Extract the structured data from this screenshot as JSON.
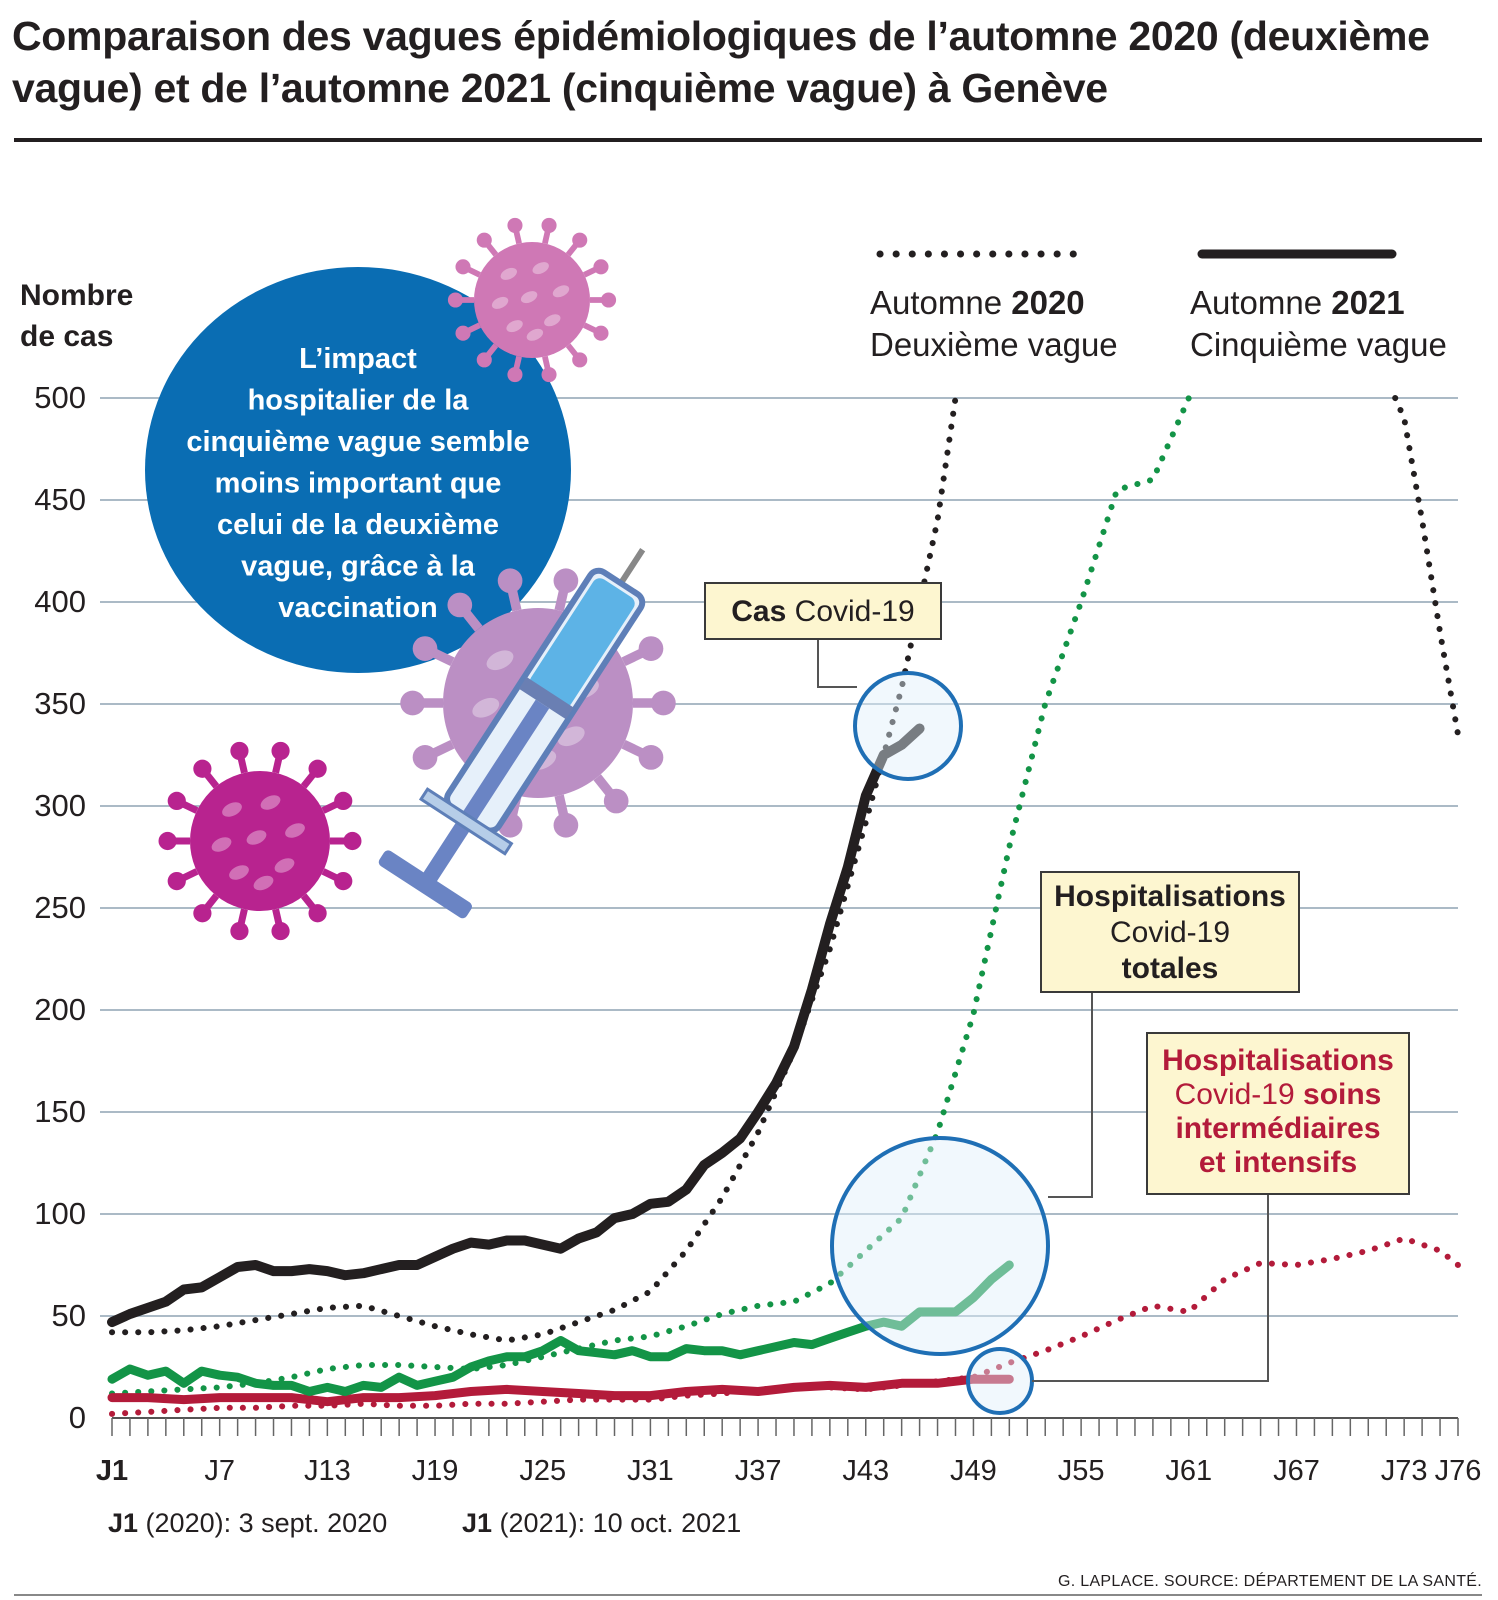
{
  "title": "Comparaison des vagues épidémiologiques de l’automne 2020 (deuxième vague) et de l’automne 2021 (cinquième vague) à Genève",
  "bubble_lines": [
    "L’impact",
    "hospitalier de la",
    "cinquième vague semble",
    "moins important que",
    "celui de la deuxième",
    "vague, grâce à la",
    "vaccination"
  ],
  "icons": [
    "virus-icon",
    "syringe-icon"
  ],
  "legend": {
    "y_label_line1": "Nombre",
    "y_label_line2": "de cas",
    "item_2020": {
      "prefix": "Automne ",
      "year": "2020",
      "subtitle": "Deuxième vague",
      "style": "dotted"
    },
    "item_2021": {
      "prefix": "Automne ",
      "year": "2021",
      "subtitle": "Cinquième vague",
      "style": "solid"
    }
  },
  "callouts": {
    "cases": {
      "bold": "Cas",
      "text": " Covid-19"
    },
    "hosp_total": {
      "line1": "Hospitalisations",
      "line2": "Covid-19",
      "line3": "totales"
    },
    "hosp_icu": {
      "line1": "Hospitalisations",
      "line2a": "Covid-19",
      "line2b": " soins",
      "line3": "intermédiaires",
      "line4": "et intensifs"
    }
  },
  "notes": {
    "j1_2020_bold": "J1",
    "j1_2020_text": " (2020): 3 sept. 2020",
    "j1_2021_bold": "J1",
    "j1_2021_text": " (2021): 10 oct. 2021"
  },
  "credit": "G. LAPLACE. SOURCE: DÉPARTEMENT DE LA SANTÉ.",
  "colors": {
    "cases": "#231f20",
    "hosp_total": "#139447",
    "hosp_icu": "#b31b3a",
    "bubble": "#0a6db3",
    "circle": "#1f6fb5",
    "callout_bg": "#fdf6d0",
    "grid": "#8fa3b3",
    "virus_pink": "#cf78b5",
    "virus_lilac": "#bb8fc4",
    "virus_magenta": "#b8238f"
  },
  "chart_data": {
    "type": "line",
    "title": "Comparaison des vagues épidémiologiques de l’automne 2020 (deuxième vague) et de l’automne 2021 (cinquième vague) à Genève",
    "xlabel": "",
    "ylabel": "Nombre de cas",
    "ylim": [
      0,
      500
    ],
    "xlim": [
      1,
      76
    ],
    "x_ticks": [
      {
        "day": 1,
        "label": "J1",
        "bold": true
      },
      {
        "day": 7,
        "label": "J7"
      },
      {
        "day": 13,
        "label": "J13"
      },
      {
        "day": 19,
        "label": "J19"
      },
      {
        "day": 25,
        "label": "J25"
      },
      {
        "day": 31,
        "label": "J31"
      },
      {
        "day": 37,
        "label": "J37"
      },
      {
        "day": 43,
        "label": "J43"
      },
      {
        "day": 49,
        "label": "J49"
      },
      {
        "day": 55,
        "label": "J55"
      },
      {
        "day": 61,
        "label": "J61"
      },
      {
        "day": 67,
        "label": "J67"
      },
      {
        "day": 73,
        "label": "J73"
      },
      {
        "day": 76,
        "label": "J76"
      }
    ],
    "y_ticks": [
      0,
      50,
      100,
      150,
      200,
      250,
      300,
      350,
      400,
      450,
      500
    ],
    "series": [
      {
        "name": "Cas Covid-19 — automne 2020",
        "wave": "2020",
        "metric": "cases",
        "style": "dotted",
        "x": [
          1,
          3,
          5,
          7,
          9,
          11,
          13,
          15,
          17,
          19,
          21,
          23,
          25,
          27,
          29,
          31,
          33,
          35,
          37,
          39,
          41,
          43,
          45,
          47,
          48
        ],
        "y": [
          42,
          42,
          43,
          45,
          48,
          51,
          54,
          55,
          50,
          45,
          41,
          38,
          41,
          47,
          53,
          62,
          82,
          108,
          140,
          180,
          230,
          292,
          358,
          440,
          500
        ],
        "y2": [
          {
            "x": 72.5,
            "y": 500
          },
          {
            "x": 73,
            "y": 490
          },
          {
            "x": 74,
            "y": 440
          },
          {
            "x": 75,
            "y": 385
          },
          {
            "x": 76,
            "y": 335
          }
        ]
      },
      {
        "name": "Cas Covid-19 — automne 2021",
        "wave": "2021",
        "metric": "cases",
        "style": "solid",
        "x": [
          1,
          2,
          3,
          4,
          5,
          6,
          7,
          8,
          9,
          10,
          11,
          12,
          13,
          14,
          15,
          16,
          17,
          18,
          19,
          20,
          21,
          22,
          23,
          24,
          25,
          26,
          27,
          28,
          29,
          30,
          31,
          32,
          33,
          34,
          35,
          36,
          37,
          38,
          39,
          40,
          41,
          42,
          43,
          44,
          45,
          46
        ],
        "y": [
          47,
          51,
          54,
          57,
          63,
          64,
          69,
          74,
          75,
          72,
          72,
          73,
          72,
          70,
          71,
          73,
          75,
          75,
          79,
          83,
          86,
          85,
          87,
          87,
          85,
          83,
          88,
          91,
          98,
          100,
          105,
          106,
          112,
          124,
          130,
          137,
          150,
          164,
          182,
          210,
          242,
          270,
          305,
          325,
          330,
          338
        ]
      },
      {
        "name": "Hospitalisations Covid-19 totales — automne 2020",
        "wave": "2020",
        "metric": "hosp_total",
        "style": "dotted",
        "x": [
          1,
          3,
          5,
          7,
          9,
          11,
          13,
          15,
          17,
          19,
          21,
          23,
          25,
          27,
          29,
          31,
          33,
          35,
          37,
          39,
          41,
          43,
          45,
          47,
          49,
          51,
          53,
          55,
          57,
          59,
          61
        ],
        "y": [
          12,
          13,
          14,
          15,
          17,
          20,
          24,
          26,
          26,
          25,
          24,
          26,
          30,
          34,
          38,
          40,
          45,
          51,
          55,
          57,
          66,
          82,
          98,
          140,
          198,
          280,
          350,
          400,
          455,
          460,
          500
        ]
      },
      {
        "name": "Hospitalisations Covid-19 totales — automne 2021",
        "wave": "2021",
        "metric": "hosp_total",
        "style": "solid",
        "x": [
          1,
          2,
          3,
          4,
          5,
          6,
          7,
          8,
          9,
          10,
          11,
          12,
          13,
          14,
          15,
          16,
          17,
          18,
          19,
          20,
          21,
          22,
          23,
          24,
          25,
          26,
          27,
          28,
          29,
          30,
          31,
          32,
          33,
          34,
          35,
          36,
          37,
          38,
          39,
          40,
          41,
          42,
          43,
          44,
          45,
          46,
          47,
          48,
          49,
          50,
          51
        ],
        "y": [
          19,
          24,
          21,
          23,
          17,
          23,
          21,
          20,
          17,
          16,
          16,
          13,
          15,
          13,
          16,
          15,
          20,
          16,
          18,
          20,
          25,
          28,
          30,
          30,
          33,
          38,
          33,
          32,
          31,
          33,
          30,
          30,
          34,
          33,
          33,
          31,
          33,
          35,
          37,
          36,
          39,
          42,
          45,
          47,
          45,
          52,
          52,
          52,
          59,
          68,
          75
        ]
      },
      {
        "name": "Hospitalisations Covid-19 soins intermédiaires et intensifs — automne 2020",
        "wave": "2020",
        "metric": "hosp_icu",
        "style": "dotted",
        "x": [
          1,
          3,
          5,
          7,
          9,
          11,
          13,
          15,
          17,
          19,
          21,
          23,
          25,
          27,
          29,
          31,
          33,
          35,
          37,
          39,
          41,
          43,
          45,
          47,
          49,
          51,
          53,
          55,
          57,
          59,
          61,
          63,
          65,
          67,
          69,
          71,
          73,
          75,
          76
        ],
        "y": [
          2,
          3,
          4,
          5,
          5,
          6,
          6,
          7,
          6,
          6,
          7,
          7,
          8,
          9,
          9,
          9,
          11,
          12,
          14,
          15,
          15,
          14,
          16,
          18,
          20,
          27,
          33,
          40,
          48,
          55,
          52,
          68,
          76,
          75,
          78,
          82,
          88,
          82,
          75
        ]
      },
      {
        "name": "Hospitalisations Covid-19 soins intermédiaires et intensifs — automne 2021",
        "wave": "2021",
        "metric": "hosp_icu",
        "style": "solid",
        "x": [
          1,
          3,
          5,
          7,
          9,
          11,
          13,
          15,
          17,
          19,
          21,
          23,
          25,
          27,
          29,
          31,
          33,
          35,
          37,
          39,
          41,
          43,
          45,
          47,
          49,
          51
        ],
        "y": [
          10,
          10,
          9,
          10,
          10,
          10,
          8,
          10,
          10,
          11,
          13,
          14,
          13,
          12,
          11,
          11,
          13,
          14,
          13,
          15,
          16,
          15,
          17,
          17,
          19,
          19
        ]
      }
    ]
  }
}
